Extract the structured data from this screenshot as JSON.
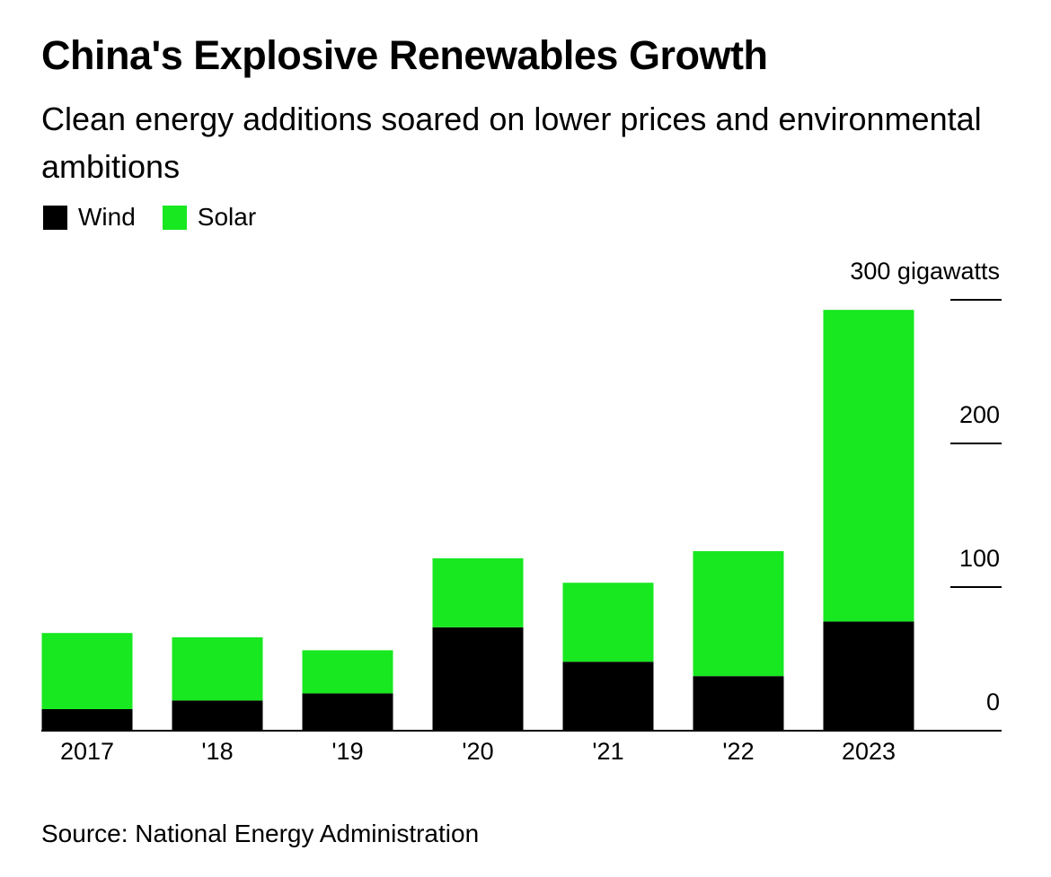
{
  "chart_data": {
    "type": "bar",
    "stacked": true,
    "title": "China's Explosive Renewables Growth",
    "subtitle": "Clean energy additions soared on lower prices and environmental ambitions",
    "categories": [
      "2017",
      "'18",
      "'19",
      "'20",
      "'21",
      "'22",
      "2023"
    ],
    "series": [
      {
        "name": "Wind",
        "color": "#000000",
        "values": [
          15,
          21,
          26,
          72,
          48,
          38,
          76
        ]
      },
      {
        "name": "Solar",
        "color": "#17E820",
        "values": [
          53,
          44,
          30,
          48,
          55,
          87,
          217
        ]
      }
    ],
    "ylim": [
      0,
      300
    ],
    "yticks": [
      0,
      100,
      200,
      300
    ],
    "ytick_labels": [
      "0",
      "100",
      "200",
      "300 gigawatts"
    ],
    "y_axis_position": "right",
    "legend_position": "top-left",
    "source": "Source: National Energy Administration"
  }
}
